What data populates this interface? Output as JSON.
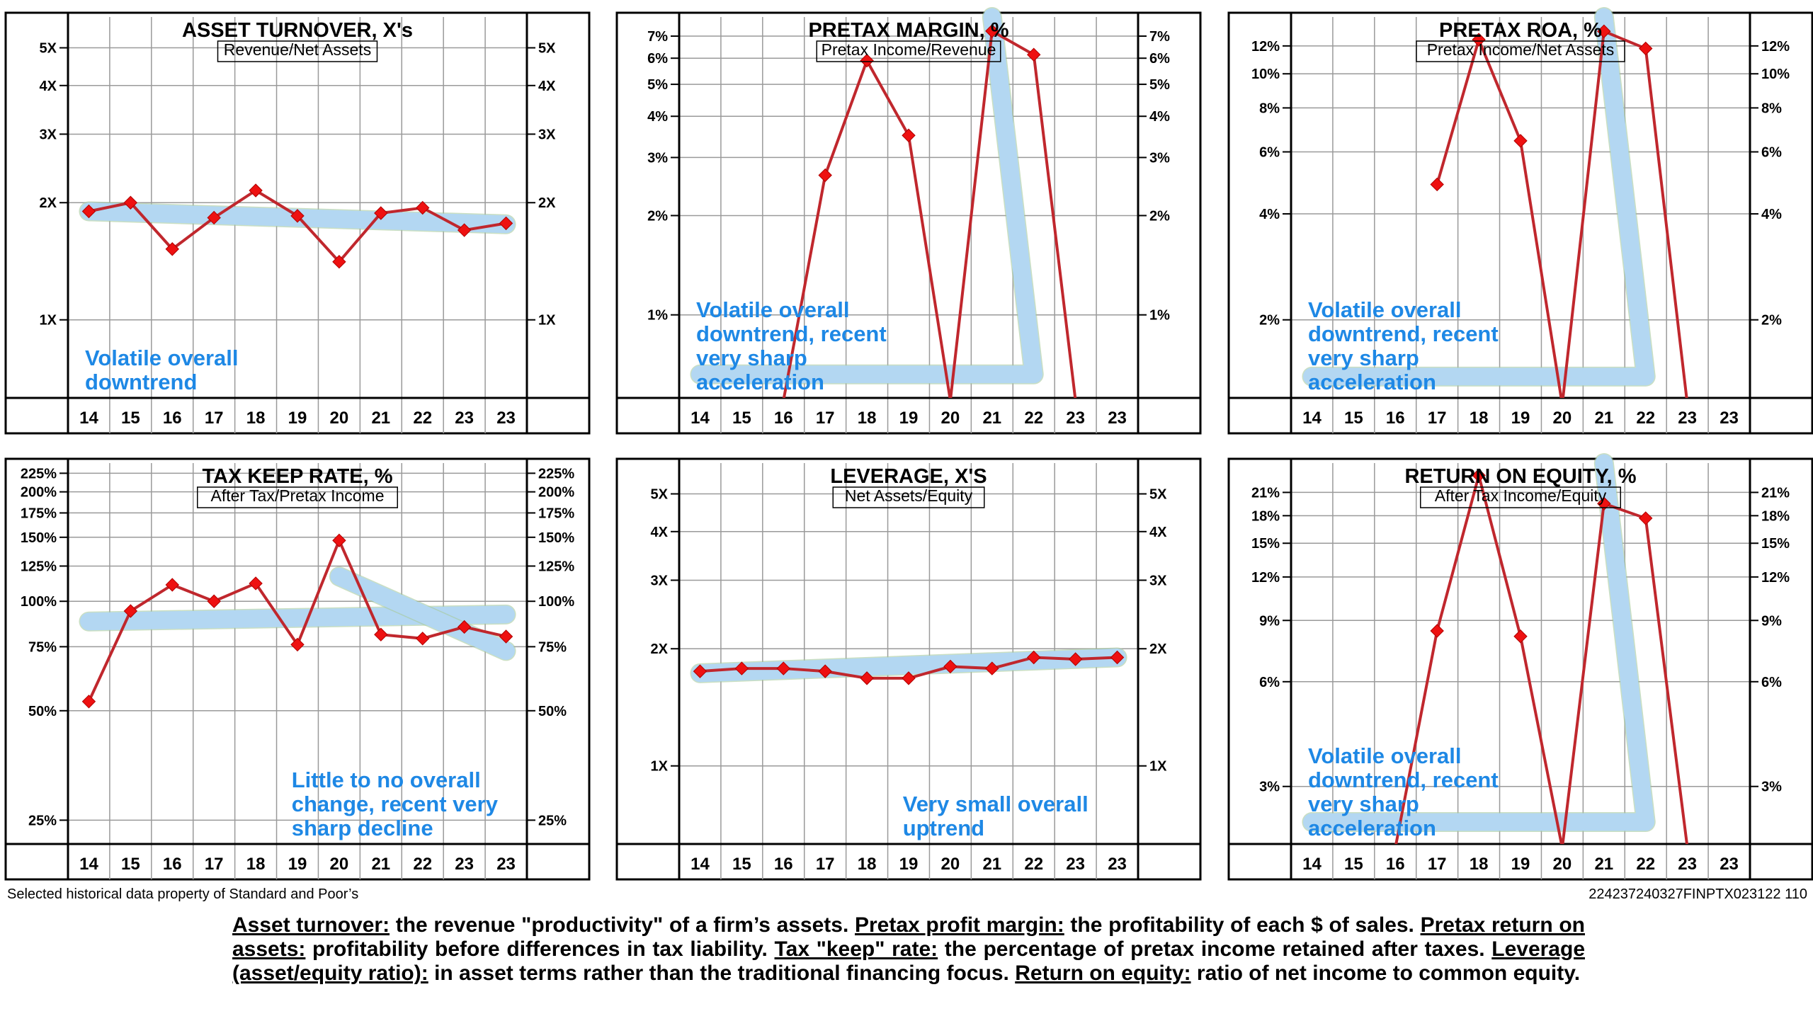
{
  "footer": {
    "source": "Selected historical data property of Standard and Poor’s",
    "code": "224237240327FINPTX023122 110"
  },
  "glossary": [
    {
      "term": "Asset turnover:",
      "text": " the revenue \"productivity\" of a firm’s assets. "
    },
    {
      "term": "Pretax profit margin:",
      "text": " the profitability of each $ of sales. "
    },
    {
      "term": "Pretax return on assets:",
      "text": " profitability before differences in tax liability. "
    },
    {
      "term": "Tax \"keep\" rate:",
      "text": " the percentage of pretax income retained after taxes. "
    },
    {
      "term": "Leverage (asset/equity ratio):",
      "text": " in asset terms rather than the traditional financing focus. "
    },
    {
      "term": "Return on equity:",
      "text": " ratio of net income to common equity."
    }
  ],
  "colors": {
    "line": "#c0272d",
    "marker": "#ee1111",
    "trend": "#b3d7f2",
    "annotation": "#1e88e5",
    "grid": "#9a9a9a"
  },
  "chart_data": [
    {
      "id": "asset-turnover",
      "type": "line",
      "scale": "log",
      "title": "ASSET TURNOVER, X's",
      "subtitle": "Revenue/Net Assets",
      "categories": [
        "14",
        "15",
        "16",
        "17",
        "18",
        "19",
        "20",
        "21",
        "22",
        "23",
        "23"
      ],
      "values": [
        1.9,
        2.0,
        1.52,
        1.83,
        2.15,
        1.85,
        1.41,
        1.88,
        1.94,
        1.7,
        1.77
      ],
      "ylim": [
        0.63,
        6.0
      ],
      "ticks": [
        {
          "v": 5,
          "l": "5X"
        },
        {
          "v": 4,
          "l": "4X"
        },
        {
          "v": 3,
          "l": "3X"
        },
        {
          "v": 2,
          "l": "2X"
        },
        {
          "v": 1,
          "l": "1X"
        }
      ],
      "trend": [
        {
          "i": 0,
          "v": 1.9
        },
        {
          "i": 10,
          "v": 1.76
        }
      ],
      "annotation": [
        "Volatile overall",
        "downtrend"
      ]
    },
    {
      "id": "pretax-margin",
      "type": "line",
      "scale": "log",
      "title": "PRETAX MARGIN, %",
      "subtitle": "Pretax Income/Revenue",
      "categories": [
        "14",
        "15",
        "16",
        "17",
        "18",
        "19",
        "20",
        "21",
        "22",
        "23",
        "23"
      ],
      "values": [
        null,
        null,
        0.55,
        2.65,
        5.9,
        3.5,
        0.55,
        7.25,
        6.15,
        0.55,
        null
      ],
      "ylim": [
        0.56,
        8.0
      ],
      "ticks": [
        {
          "v": 7,
          "l": "7%"
        },
        {
          "v": 6,
          "l": "6%"
        },
        {
          "v": 5,
          "l": "5%"
        },
        {
          "v": 4,
          "l": "4%"
        },
        {
          "v": 3,
          "l": "3%"
        },
        {
          "v": 2,
          "l": "2%"
        },
        {
          "v": 1,
          "l": "1%"
        }
      ],
      "trend": [
        {
          "i": 0,
          "v": 0.66
        },
        {
          "i": 8,
          "v": 0.66
        },
        {
          "i": 7,
          "v": 8.0
        }
      ],
      "annotation": [
        "Volatile overall",
        "downtrend, recent",
        "very sharp",
        "acceleration"
      ]
    },
    {
      "id": "pretax-roa",
      "type": "line",
      "scale": "log",
      "title": "PRETAX ROA, %",
      "subtitle": "Pretax Income/Net Assets",
      "categories": [
        "14",
        "15",
        "16",
        "17",
        "18",
        "19",
        "20",
        "21",
        "22",
        "23",
        "23"
      ],
      "values": [
        null,
        null,
        null,
        4.85,
        12.5,
        6.45,
        1.15,
        13.2,
        11.8,
        1.15,
        null
      ],
      "ylim": [
        1.2,
        14.5
      ],
      "ticks": [
        {
          "v": 12,
          "l": "12%"
        },
        {
          "v": 10,
          "l": "10%"
        },
        {
          "v": 8,
          "l": "8%"
        },
        {
          "v": 6,
          "l": "6%"
        },
        {
          "v": 4,
          "l": "4%"
        },
        {
          "v": 2,
          "l": "2%"
        }
      ],
      "trend": [
        {
          "i": 0,
          "v": 1.38
        },
        {
          "i": 8,
          "v": 1.38
        },
        {
          "i": 7,
          "v": 14.5
        }
      ],
      "annotation": [
        "Volatile overall",
        "downtrend, recent",
        "very sharp",
        "acceleration"
      ]
    },
    {
      "id": "tax-keep-rate",
      "type": "line",
      "scale": "log",
      "title": "TAX KEEP RATE, %",
      "subtitle": "After Tax/Pretax Income",
      "categories": [
        "14",
        "15",
        "16",
        "17",
        "18",
        "19",
        "20",
        "21",
        "22",
        "23",
        "23"
      ],
      "values": [
        53,
        94,
        111,
        100,
        112,
        76,
        147,
        81,
        79,
        85,
        80
      ],
      "ylim": [
        21.5,
        240
      ],
      "ticks": [
        {
          "v": 225,
          "l": "225%"
        },
        {
          "v": 200,
          "l": "200%"
        },
        {
          "v": 175,
          "l": "175%"
        },
        {
          "v": 150,
          "l": "150%"
        },
        {
          "v": 125,
          "l": "125%"
        },
        {
          "v": 100,
          "l": "100%"
        },
        {
          "v": 75,
          "l": "75%"
        },
        {
          "v": 50,
          "l": "50%"
        },
        {
          "v": 25,
          "l": "25%"
        }
      ],
      "trend": [
        {
          "i": 0,
          "v": 88
        },
        {
          "i": 10,
          "v": 92
        }
      ],
      "trend2": [
        {
          "i": 6,
          "v": 117
        },
        {
          "i": 10,
          "v": 73
        }
      ],
      "annotation": [
        "Little to no overall",
        "change, recent very",
        "sharp decline"
      ]
    },
    {
      "id": "leverage",
      "type": "line",
      "scale": "log",
      "title": "LEVERAGE, X'S",
      "subtitle": "Net Assets/Equity",
      "categories": [
        "14",
        "15",
        "16",
        "17",
        "18",
        "19",
        "20",
        "21",
        "22",
        "23",
        "23"
      ],
      "values": [
        1.75,
        1.78,
        1.78,
        1.75,
        1.68,
        1.68,
        1.8,
        1.78,
        1.9,
        1.88,
        1.9
      ],
      "ylim": [
        0.63,
        6.0
      ],
      "ticks": [
        {
          "v": 5,
          "l": "5X"
        },
        {
          "v": 4,
          "l": "4X"
        },
        {
          "v": 3,
          "l": "3X"
        },
        {
          "v": 2,
          "l": "2X"
        },
        {
          "v": 1,
          "l": "1X"
        }
      ],
      "trend": [
        {
          "i": 0,
          "v": 1.73
        },
        {
          "i": 10,
          "v": 1.9
        }
      ],
      "annotation": [
        "Very small overall",
        "uptrend"
      ]
    },
    {
      "id": "return-on-equity",
      "type": "line",
      "scale": "log",
      "title": "RETURN ON EQUITY, %",
      "subtitle": "After Tax Income/Equity",
      "categories": [
        "14",
        "15",
        "16",
        "17",
        "18",
        "19",
        "20",
        "21",
        "22",
        "23",
        "23"
      ],
      "values": [
        null,
        null,
        2.0,
        8.4,
        23.5,
        8.1,
        2.0,
        19.5,
        17.7,
        2.0,
        null
      ],
      "ylim": [
        2.05,
        25.5
      ],
      "ticks": [
        {
          "v": 21,
          "l": "21%"
        },
        {
          "v": 18,
          "l": "18%"
        },
        {
          "v": 15,
          "l": "15%"
        },
        {
          "v": 12,
          "l": "12%"
        },
        {
          "v": 9,
          "l": "9%"
        },
        {
          "v": 6,
          "l": "6%"
        },
        {
          "v": 3,
          "l": "3%"
        }
      ],
      "trend": [
        {
          "i": 0,
          "v": 2.37
        },
        {
          "i": 8,
          "v": 2.37
        },
        {
          "i": 7,
          "v": 25.5
        }
      ],
      "annotation": [
        "Volatile overall",
        "downtrend, recent",
        "very sharp",
        "acceleration"
      ]
    }
  ]
}
